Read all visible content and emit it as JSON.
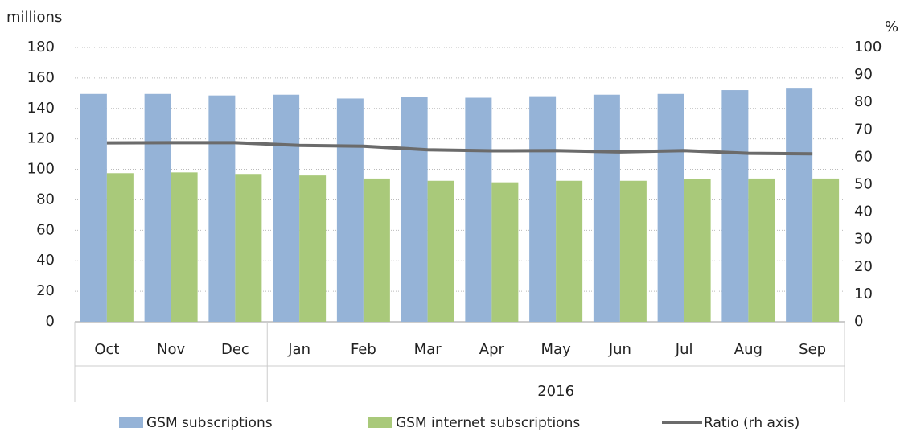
{
  "chart_data": {
    "type": "bar",
    "y_axis_label": "millions",
    "y2_axis_label": "%",
    "categories": [
      "Oct",
      "Nov",
      "Dec",
      "Jan",
      "Feb",
      "Mar",
      "Apr",
      "May",
      "Jun",
      "Jul",
      "Aug",
      "Sep"
    ],
    "groups": [
      {
        "label": null,
        "size": 3
      },
      {
        "label": "2016",
        "size": 9
      }
    ],
    "series": [
      {
        "name": "GSM subscriptions",
        "type": "bar",
        "color": "#95b3d7",
        "values": [
          149.5,
          149.5,
          148.5,
          149,
          146.5,
          147.5,
          147,
          148,
          149,
          149.5,
          152,
          153
        ]
      },
      {
        "name": "GSM internet subscriptions",
        "type": "bar",
        "color": "#a9c97a",
        "values": [
          97.5,
          98,
          97,
          96,
          94,
          92.5,
          91.5,
          92.5,
          92.5,
          93.5,
          94,
          94
        ]
      },
      {
        "name": "Ratio (rh axis)",
        "type": "line",
        "axis": "y2",
        "color": "#6b6b6b",
        "values": [
          65.2,
          65.3,
          65.3,
          64.3,
          64,
          62.7,
          62.3,
          62.4,
          61.9,
          62.4,
          61.4,
          61.2
        ]
      }
    ],
    "ylim": [
      0,
      180
    ],
    "yticks": [
      0,
      20,
      40,
      60,
      80,
      100,
      120,
      140,
      160,
      180
    ],
    "y2lim": [
      0,
      100
    ],
    "y2ticks": [
      0,
      10,
      20,
      30,
      40,
      50,
      60,
      70,
      80,
      90,
      100
    ],
    "grid": true,
    "legend": "bottom"
  }
}
